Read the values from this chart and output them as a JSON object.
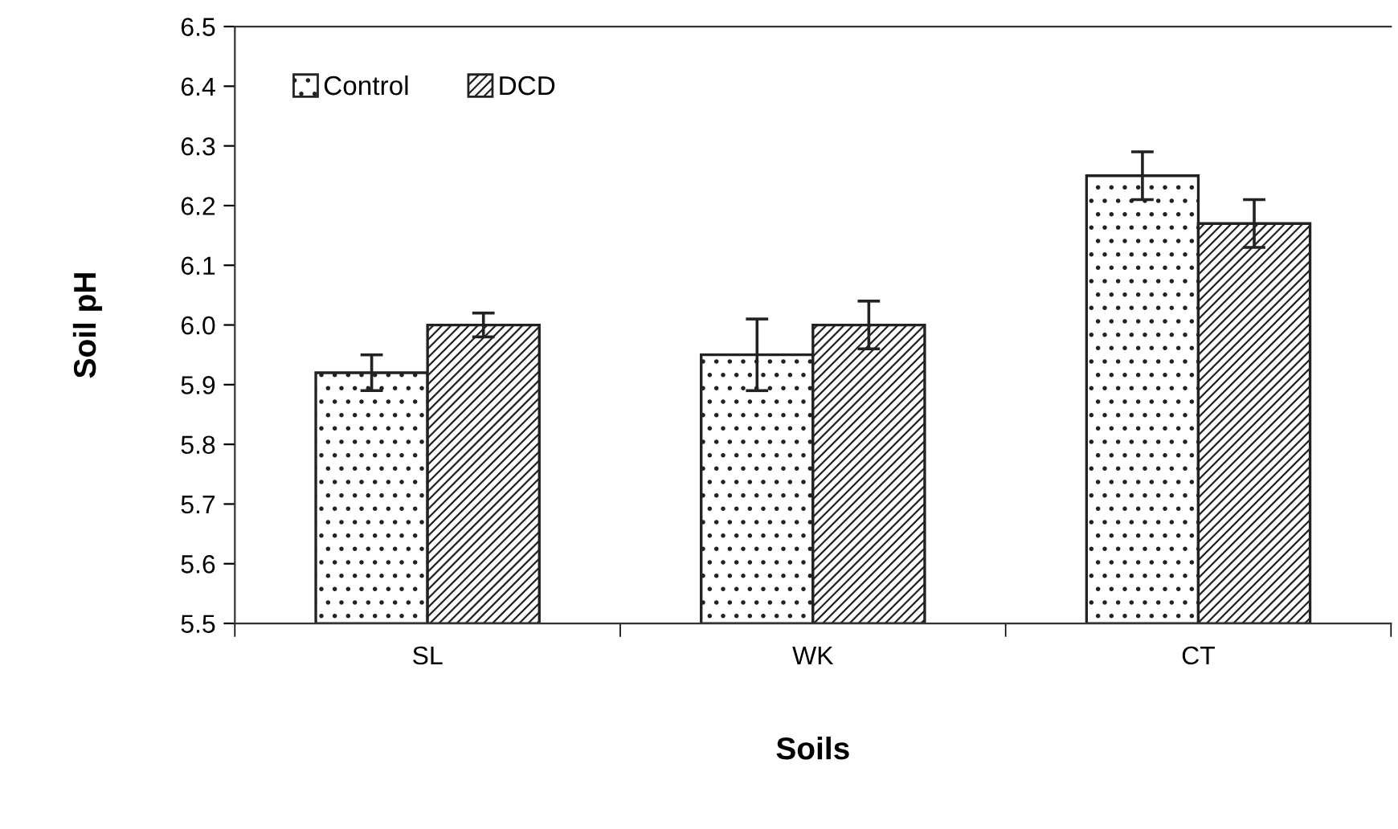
{
  "chart_data": {
    "type": "bar",
    "xlabel": "Soils",
    "ylabel": "Soil pH",
    "categories": [
      "SL",
      "WK",
      "CT"
    ],
    "series": [
      {
        "name": "Control",
        "color": "#222222",
        "values": [
          5.92,
          5.95,
          6.25
        ],
        "errors": [
          0.03,
          0.06,
          0.04
        ]
      },
      {
        "name": "DCD",
        "color": "#222222",
        "values": [
          6.0,
          6.0,
          6.17
        ],
        "errors": [
          0.02,
          0.04,
          0.04
        ]
      }
    ],
    "ylim": [
      5.5,
      6.5
    ],
    "yticks": [
      {
        "value": 5.5,
        "label": "5.5"
      },
      {
        "value": 5.6,
        "label": "5.6"
      },
      {
        "value": 5.7,
        "label": "5.7"
      },
      {
        "value": 5.8,
        "label": "5.8"
      },
      {
        "value": 5.9,
        "label": "5.9"
      },
      {
        "value": 6.0,
        "label": "6.0"
      },
      {
        "value": 6.1,
        "label": "6.1"
      },
      {
        "value": 6.2,
        "label": "6.2"
      },
      {
        "value": 6.3,
        "label": "6.3"
      },
      {
        "value": 6.4,
        "label": "6.4"
      },
      {
        "value": 6.5,
        "label": "6.5"
      }
    ],
    "grid": false,
    "legend": "top left"
  }
}
